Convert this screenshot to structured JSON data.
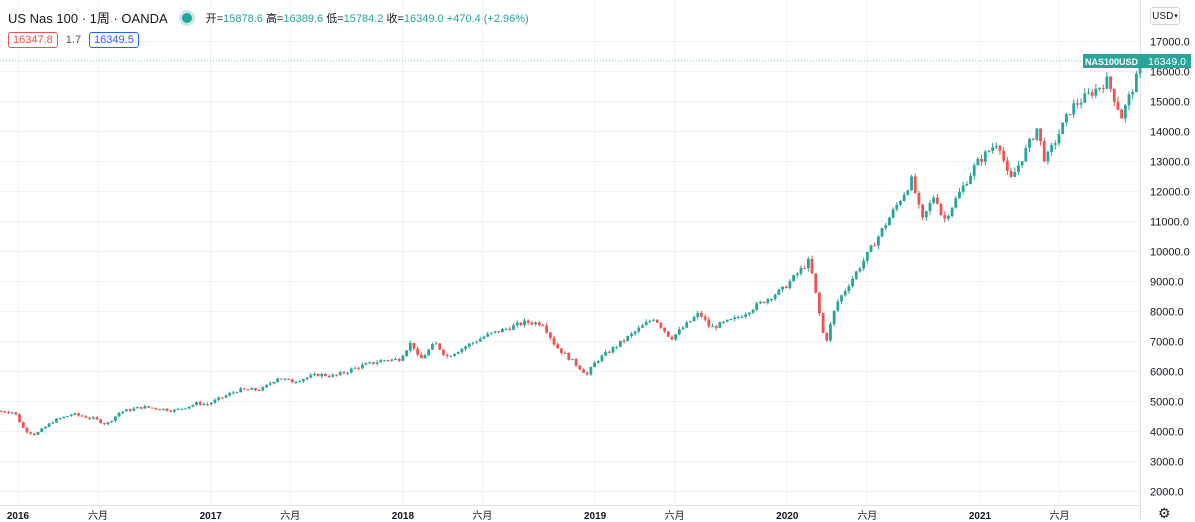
{
  "legend": {
    "symbol": "US Nas 100 · 1周 · OANDA",
    "open_label": "开=",
    "open": "15878.6",
    "high_label": "高=",
    "high": "16389.6",
    "low_label": "低=",
    "low": "15784.2",
    "close_label": "收=",
    "close": "16349.0",
    "change": "+470.4 (+2.96%)"
  },
  "bid": "16347.8",
  "spread": "1.7",
  "ask": "16349.5",
  "currency_button": "USD",
  "last_price_tag": {
    "name": "NAS100USD",
    "value": "16349.0"
  },
  "colors": {
    "up": "#26a69a",
    "down": "#ef5350",
    "grid": "#f0f3fa",
    "axis": "#e0e3eb"
  },
  "chart_data": {
    "type": "candlestick",
    "interval": "1 week",
    "title": "US Nas 100 · 1周 · OANDA",
    "y_ticks": [
      2000,
      3000,
      4000,
      5000,
      6000,
      7000,
      8000,
      9000,
      10000,
      11000,
      12000,
      13000,
      14000,
      15000,
      16000,
      17000
    ],
    "y_tick_labels": [
      "2000.0",
      "3000.0",
      "4000.0",
      "5000.0",
      "6000.0",
      "7000.0",
      "8000.0",
      "9000.0",
      "10000.0",
      "11000.0",
      "12000.0",
      "13000.0",
      "14000.0",
      "15000.0",
      "16000.0",
      "17000.0"
    ],
    "x_ticks": [
      {
        "label": "2016",
        "date": "2016-01-01",
        "bold": true
      },
      {
        "label": "六月",
        "date": "2016-06-01",
        "bold": false
      },
      {
        "label": "2017",
        "date": "2017-01-01",
        "bold": true
      },
      {
        "label": "六月",
        "date": "2017-06-01",
        "bold": false
      },
      {
        "label": "2018",
        "date": "2018-01-01",
        "bold": true
      },
      {
        "label": "六月",
        "date": "2018-06-01",
        "bold": false
      },
      {
        "label": "2019",
        "date": "2019-01-01",
        "bold": true
      },
      {
        "label": "六月",
        "date": "2019-06-01",
        "bold": false
      },
      {
        "label": "2020",
        "date": "2020-01-01",
        "bold": true
      },
      {
        "label": "六月",
        "date": "2020-06-01",
        "bold": false
      },
      {
        "label": "2021",
        "date": "2021-01-01",
        "bold": true
      },
      {
        "label": "六月",
        "date": "2021-06-01",
        "bold": false
      }
    ],
    "last_close": 16349.0,
    "price_path": [
      [
        "2015-11-30",
        4680
      ],
      [
        "2016-01-01",
        4650
      ],
      [
        "2016-01-20",
        4050
      ],
      [
        "2016-02-10",
        3900
      ],
      [
        "2016-03-15",
        4350
      ],
      [
        "2016-04-20",
        4580
      ],
      [
        "2016-06-01",
        4420
      ],
      [
        "2016-06-24",
        4240
      ],
      [
        "2016-07-20",
        4650
      ],
      [
        "2016-09-01",
        4820
      ],
      [
        "2016-11-01",
        4700
      ],
      [
        "2016-12-15",
        4950
      ],
      [
        "2017-01-01",
        4900
      ],
      [
        "2017-03-01",
        5380
      ],
      [
        "2017-04-15",
        5400
      ],
      [
        "2017-05-15",
        5800
      ],
      [
        "2017-06-10",
        5660
      ],
      [
        "2017-08-01",
        5900
      ],
      [
        "2017-09-01",
        5850
      ],
      [
        "2017-10-15",
        6150
      ],
      [
        "2017-12-01",
        6380
      ],
      [
        "2017-12-31",
        6400
      ],
      [
        "2018-01-25",
        7000
      ],
      [
        "2018-02-08",
        6350
      ],
      [
        "2018-03-10",
        6950
      ],
      [
        "2018-04-01",
        6500
      ],
      [
        "2018-06-15",
        7200
      ],
      [
        "2018-08-30",
        7650
      ],
      [
        "2018-10-01",
        7600
      ],
      [
        "2018-10-25",
        6850
      ],
      [
        "2018-12-24",
        5900
      ],
      [
        "2019-01-10",
        6350
      ],
      [
        "2019-04-30",
        7800
      ],
      [
        "2019-06-01",
        7100
      ],
      [
        "2019-07-25",
        7950
      ],
      [
        "2019-08-15",
        7450
      ],
      [
        "2019-10-01",
        7750
      ],
      [
        "2019-12-31",
        8750
      ],
      [
        "2020-02-19",
        9700
      ],
      [
        "2020-03-20",
        6900
      ],
      [
        "2020-04-10",
        8250
      ],
      [
        "2020-06-10",
        9950
      ],
      [
        "2020-09-01",
        12400
      ],
      [
        "2020-09-20",
        11000
      ],
      [
        "2020-10-15",
        11950
      ],
      [
        "2020-10-30",
        11000
      ],
      [
        "2020-12-31",
        12900
      ],
      [
        "2021-02-12",
        13700
      ],
      [
        "2021-03-05",
        12300
      ],
      [
        "2021-04-26",
        14100
      ],
      [
        "2021-05-12",
        13000
      ],
      [
        "2021-07-01",
        14800
      ],
      [
        "2021-09-07",
        15700
      ],
      [
        "2021-10-04",
        14500
      ],
      [
        "2021-11-14",
        16349
      ]
    ]
  }
}
